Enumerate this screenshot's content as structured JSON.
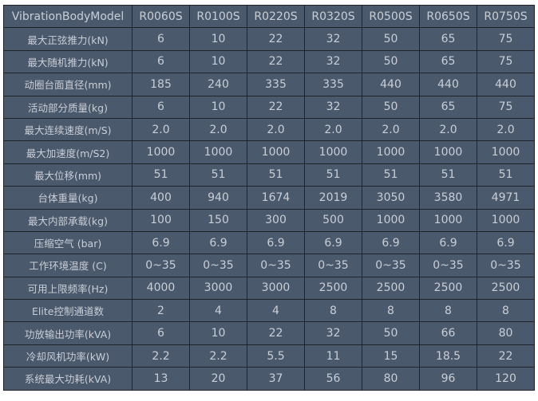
{
  "table": {
    "header": [
      "VibrationBodyModel",
      "R0060S",
      "R0100S",
      "R0220S",
      "R0320S",
      "R0500S",
      "R0650S",
      "R0750S"
    ],
    "rows": [
      {
        "label": "最大正弦推力(kN)",
        "values": [
          "6",
          "10",
          "22",
          "32",
          "50",
          "65",
          "75"
        ]
      },
      {
        "label": "最大随机推力(kN)",
        "values": [
          "6",
          "10",
          "22",
          "32",
          "50",
          "65",
          "75"
        ]
      },
      {
        "label": "动圈台面直径(mm)",
        "values": [
          "185",
          "240",
          "335",
          "335",
          "440",
          "440",
          "440"
        ]
      },
      {
        "label": "活动部分质量(kg)",
        "values": [
          "6",
          "10",
          "22",
          "32",
          "50",
          "65",
          "75"
        ]
      },
      {
        "label": "最大连续速度(m/S)",
        "values": [
          "2.0",
          "2.0",
          "2.0",
          "2.0",
          "2.0",
          "2.0",
          "2.0"
        ]
      },
      {
        "label": "最大加速度(m/S2)",
        "values": [
          "1000",
          "1000",
          "1000",
          "1000",
          "1000",
          "1000",
          "1000"
        ]
      },
      {
        "label": "最大位移(mm)",
        "values": [
          "51",
          "51",
          "51",
          "51",
          "51",
          "51",
          "51"
        ]
      },
      {
        "label": "台体重量(kg)",
        "values": [
          "400",
          "940",
          "1674",
          "2019",
          "3050",
          "3580",
          "4971"
        ]
      },
      {
        "label": "最大内部承载(kg)",
        "values": [
          "100",
          "150",
          "300",
          "500",
          "1000",
          "1000",
          "1000"
        ]
      },
      {
        "label": "压缩空气 (bar)",
        "values": [
          "6.9",
          "6.9",
          "6.9",
          "6.9",
          "6.9",
          "6.9",
          "6.9"
        ]
      },
      {
        "label": "工作环境温度 (C)",
        "values": [
          "0~35",
          "0~35",
          "0~35",
          "0~35",
          "0~35",
          "0~35",
          "0~35"
        ]
      },
      {
        "label": "可用上限频率(Hz)",
        "values": [
          "4000",
          "3000",
          "3000",
          "2500",
          "2500",
          "2500",
          "2500"
        ]
      },
      {
        "label": "Elite控制通道数",
        "values": [
          "2",
          "4",
          "4",
          "8",
          "8",
          "8",
          "8"
        ]
      },
      {
        "label": "功放输出功率(kVA)",
        "values": [
          "6",
          "10",
          "22",
          "32",
          "50",
          "66",
          "80"
        ]
      },
      {
        "label": "冷却风机功率(kW)",
        "values": [
          "2.2",
          "2.2",
          "5.5",
          "11",
          "15",
          "18.5",
          "22"
        ]
      },
      {
        "label": "系统最大功耗(kVA)",
        "values": [
          "13",
          "20",
          "37",
          "56",
          "80",
          "96",
          "120"
        ]
      }
    ]
  }
}
